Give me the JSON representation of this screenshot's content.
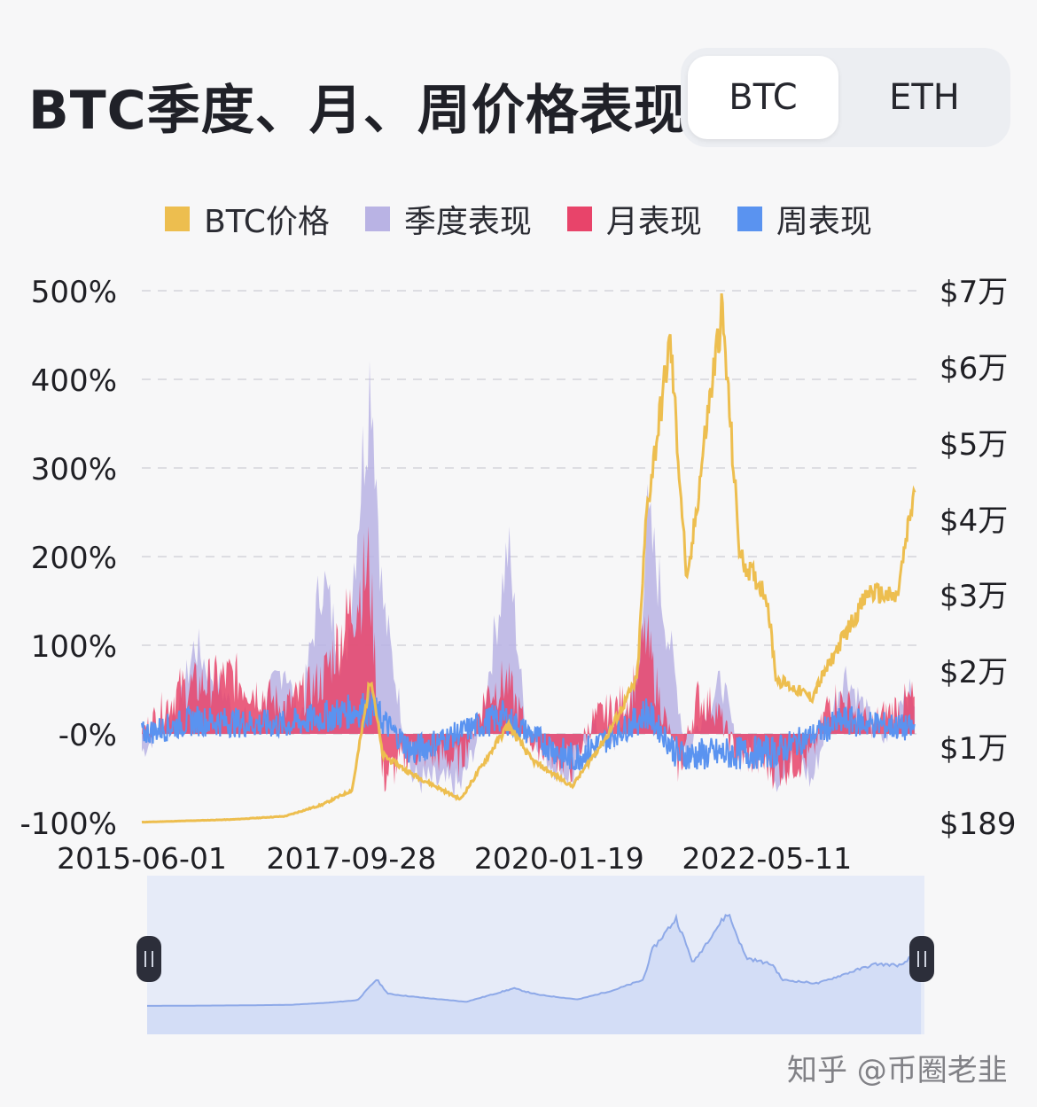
{
  "header": {
    "title": "BTC季度、月、周价格表现"
  },
  "toggle": {
    "options": [
      "BTC",
      "ETH"
    ],
    "selected": "BTC"
  },
  "legend": [
    {
      "label": "BTC价格",
      "color": "#EDBE4F"
    },
    {
      "label": "季度表现",
      "color": "#B9B3E4"
    },
    {
      "label": "月表现",
      "color": "#E8446A"
    },
    {
      "label": "周表现",
      "color": "#5A93F0"
    }
  ],
  "watermark": {
    "text": "知乎 @币圈老韭"
  },
  "chart_data": {
    "type": "line",
    "x_ticks": [
      "2015-06-01",
      "2017-09-28",
      "2020-01-19",
      "2022-05-11"
    ],
    "y_left_ticks": [
      "500%",
      "400%",
      "300%",
      "200%",
      "100%",
      "-0%",
      "-100%"
    ],
    "y_right_ticks": [
      "$7万",
      "$6万",
      "$5万",
      "$4万",
      "$3万",
      "$2万",
      "$1万",
      "$189"
    ],
    "y_left_range": [
      -100,
      500
    ],
    "grid": true,
    "legend_position": "top",
    "series": [
      {
        "name": "BTC价格",
        "axis": "right",
        "x": [
          "2015-06-01",
          "2016-06-01",
          "2017-01-01",
          "2017-06-01",
          "2017-10-01",
          "2017-12-17",
          "2018-02-01",
          "2018-06-01",
          "2018-12-15",
          "2019-06-26",
          "2019-10-01",
          "2020-03-12",
          "2020-08-01",
          "2020-12-01",
          "2021-01-08",
          "2021-04-14",
          "2021-06-22",
          "2021-09-06",
          "2021-11-10",
          "2022-01-22",
          "2022-05-10",
          "2022-06-18",
          "2022-11-09",
          "2023-03-01",
          "2023-06-30",
          "2023-10-20",
          "2024-01-01"
        ],
        "values": [
          230,
          580,
          1000,
          2500,
          4400,
          19500,
          9000,
          6500,
          3200,
          12900,
          8300,
          4900,
          11500,
          19000,
          41000,
          63500,
          31000,
          52000,
          67500,
          35000,
          30000,
          19000,
          16500,
          23500,
          30500,
          29500,
          44000
        ]
      },
      {
        "name": "季度表现",
        "axis": "left",
        "x": [
          "2015-06-01",
          "2015-11-01",
          "2016-01-01",
          "2016-06-01",
          "2016-09-01",
          "2017-01-01",
          "2017-03-01",
          "2017-06-01",
          "2017-09-01",
          "2017-12-17",
          "2018-02-01",
          "2018-06-01",
          "2018-12-15",
          "2019-03-01",
          "2019-06-26",
          "2019-09-01",
          "2019-12-01",
          "2020-03-12",
          "2020-06-01",
          "2020-09-01",
          "2020-12-01",
          "2021-01-08",
          "2021-02-15",
          "2021-04-14",
          "2021-06-22",
          "2021-08-01",
          "2021-11-10",
          "2022-01-22",
          "2022-04-01",
          "2022-06-18",
          "2022-09-01",
          "2022-11-09",
          "2023-01-01",
          "2023-03-20",
          "2023-06-30",
          "2023-09-01",
          "2023-11-15",
          "2024-01-01"
        ],
        "values": [
          -20,
          30,
          100,
          30,
          10,
          80,
          10,
          180,
          70,
          420,
          150,
          -50,
          -60,
          0,
          210,
          20,
          -30,
          -50,
          10,
          -10,
          60,
          240,
          190,
          100,
          -30,
          10,
          60,
          -30,
          0,
          -50,
          -20,
          -55,
          0,
          70,
          20,
          -10,
          50,
          40
        ]
      },
      {
        "name": "月表现",
        "axis": "left",
        "x": [
          "2015-06-01",
          "2015-11-01",
          "2016-06-01",
          "2017-01-01",
          "2017-06-01",
          "2017-12-10",
          "2018-02-01",
          "2018-06-01",
          "2018-12-15",
          "2019-04-01",
          "2019-06-20",
          "2019-10-01",
          "2020-03-12",
          "2020-06-01",
          "2020-11-01",
          "2021-01-05",
          "2021-02-20",
          "2021-05-20",
          "2021-08-01",
          "2021-10-15",
          "2022-01-01",
          "2022-06-18",
          "2022-11-09",
          "2023-01-20",
          "2023-03-20",
          "2023-06-30",
          "2023-10-20",
          "2024-01-01"
        ],
        "values": [
          0,
          50,
          65,
          30,
          60,
          190,
          -50,
          -20,
          -30,
          45,
          60,
          -10,
          -35,
          15,
          40,
          110,
          50,
          -40,
          40,
          30,
          -20,
          -40,
          -25,
          40,
          35,
          10,
          30,
          40
        ]
      },
      {
        "name": "周表现",
        "axis": "left",
        "x": [
          "2015-06-01",
          "2016-01-01",
          "2017-01-01",
          "2017-12-15",
          "2018-06-01",
          "2019-06-01",
          "2020-03-12",
          "2020-12-01",
          "2021-01-08",
          "2021-05-19",
          "2022-06-18",
          "2023-03-20",
          "2024-01-01"
        ],
        "values": [
          0,
          15,
          10,
          30,
          -20,
          20,
          -30,
          15,
          25,
          -25,
          -20,
          15,
          5
        ]
      }
    ]
  }
}
